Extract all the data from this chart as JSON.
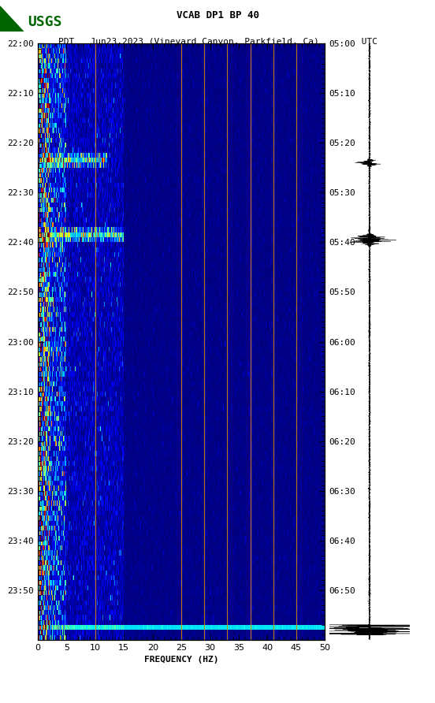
{
  "title_line1": "VCAB DP1 BP 40",
  "title_line2": "PDT   Jun23,2023 (Vineyard Canyon, Parkfield, Ca)        UTC",
  "xlabel": "FREQUENCY (HZ)",
  "freq_min": 0,
  "freq_max": 50,
  "freq_ticks": [
    0,
    5,
    10,
    15,
    20,
    25,
    30,
    35,
    40,
    45,
    50
  ],
  "left_time_labels": [
    "22:00",
    "22:10",
    "22:20",
    "22:30",
    "22:40",
    "22:50",
    "23:00",
    "23:10",
    "23:20",
    "23:30",
    "23:40",
    "23:50"
  ],
  "right_time_labels": [
    "05:00",
    "05:10",
    "05:20",
    "05:30",
    "05:40",
    "05:50",
    "06:00",
    "06:10",
    "06:20",
    "06:30",
    "06:40",
    "06:50"
  ],
  "orange_vlines": [
    10.0,
    25.0,
    29.0,
    33.0,
    37.0,
    41.0,
    45.0
  ],
  "background_color": "#ffffff",
  "usgs_logo_color": "#006400",
  "colormap": "jet",
  "fig_width": 5.52,
  "fig_height": 8.92,
  "dpi": 100
}
